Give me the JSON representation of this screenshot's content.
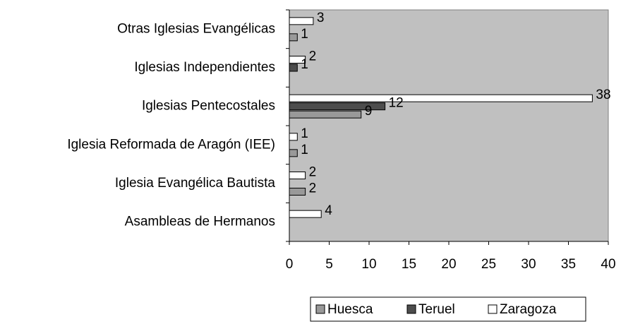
{
  "chart_data": {
    "type": "bar",
    "orientation": "horizontal",
    "categories": [
      "Otras Iglesias Evangélicas",
      "Iglesias Independientes",
      "Iglesias Pentecostales",
      "Iglesia Reformada de Aragón (IEE)",
      "Iglesia Evangélica Bautista",
      "Asambleas de Hermanos"
    ],
    "series": [
      {
        "name": "Huesca",
        "color": "#999999",
        "values": [
          1,
          null,
          9,
          1,
          2,
          null
        ]
      },
      {
        "name": "Teruel",
        "color": "#4d4d4d",
        "values": [
          null,
          1,
          12,
          null,
          null,
          null
        ]
      },
      {
        "name": "Zaragoza",
        "color": "#ffffff",
        "values": [
          3,
          2,
          38,
          1,
          2,
          4
        ]
      }
    ],
    "xlim": [
      0,
      40
    ],
    "xticks": [
      0,
      5,
      10,
      15,
      20,
      25,
      30,
      35,
      40
    ],
    "plot_background": "#c0c0c0",
    "legend": "bottom"
  }
}
